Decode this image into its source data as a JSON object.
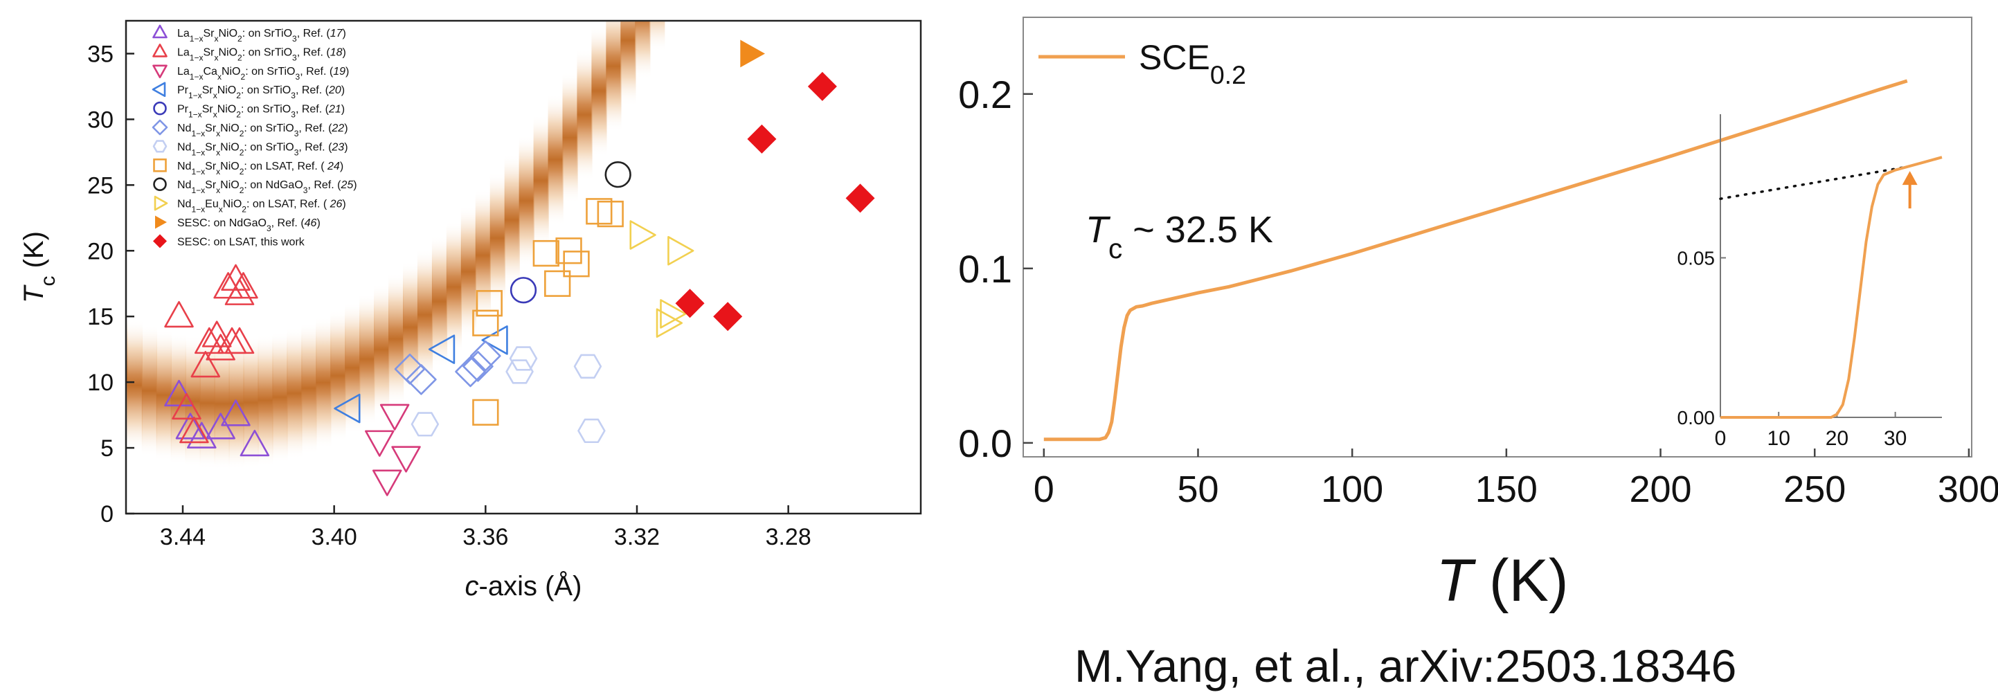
{
  "chart_data": [
    {
      "type": "scatter",
      "title": "",
      "ylabel": {
        "sym": "T",
        "sub": "c",
        "unit": " (K)"
      },
      "xlabel": {
        "sym": "c",
        "rest": "-axis (Å)"
      },
      "xlim": [
        3.455,
        3.245
      ],
      "ylim": [
        0,
        37.5
      ],
      "x_reversed": true,
      "xticks": [
        3.44,
        3.4,
        3.36,
        3.32,
        3.28
      ],
      "xtick_labels": [
        "3.44",
        "3.40",
        "3.36",
        "3.32",
        "3.28"
      ],
      "yticks": [
        0,
        5,
        10,
        15,
        20,
        25,
        30,
        35
      ],
      "ytick_labels": [
        "0",
        "5",
        "10",
        "15",
        "20",
        "25",
        "30",
        "35"
      ],
      "background": "orange gradient band along the trend",
      "legend_position": "top-left",
      "series": [
        {
          "name_parts": [
            [
              "La",
              ""
            ],
            [
              "1−x",
              "sub"
            ],
            [
              "Sr",
              ""
            ],
            [
              "x",
              "sub"
            ],
            [
              "NiO",
              ""
            ],
            [
              "2",
              "sub"
            ],
            [
              ": on SrTiO",
              ""
            ],
            [
              "3",
              "sub"
            ],
            [
              ", Ref. (",
              ""
            ],
            [
              "17",
              "i"
            ],
            [
              ")",
              ""
            ]
          ],
          "marker": "triangle-up",
          "color": "#8c4fd6",
          "fill": "none",
          "points": [
            [
              3.441,
              9
            ],
            [
              3.438,
              6.5
            ],
            [
              3.435,
              5.8
            ],
            [
              3.43,
              6.5
            ],
            [
              3.426,
              7.5
            ],
            [
              3.421,
              5.2
            ]
          ]
        },
        {
          "name_parts": [
            [
              "La",
              ""
            ],
            [
              "1−x",
              "sub"
            ],
            [
              "Sr",
              ""
            ],
            [
              "x",
              "sub"
            ],
            [
              "NiO",
              ""
            ],
            [
              "2",
              "sub"
            ],
            [
              ": on SrTiO",
              ""
            ],
            [
              "3",
              "sub"
            ],
            [
              ", Ref. (",
              ""
            ],
            [
              "18",
              "i"
            ],
            [
              ")",
              ""
            ]
          ],
          "marker": "triangle-up",
          "color": "#e8404a",
          "fill": "none",
          "points": [
            [
              3.441,
              15
            ],
            [
              3.439,
              8
            ],
            [
              3.437,
              6.2
            ],
            [
              3.434,
              11.2
            ],
            [
              3.433,
              13
            ],
            [
              3.431,
              13.5
            ],
            [
              3.43,
              12.5
            ],
            [
              3.427,
              13
            ],
            [
              3.428,
              17.2
            ],
            [
              3.426,
              17.8
            ],
            [
              3.425,
              16.7
            ],
            [
              3.424,
              17.2
            ],
            [
              3.425,
              13
            ]
          ]
        },
        {
          "name_parts": [
            [
              "La",
              ""
            ],
            [
              "1−x",
              "sub"
            ],
            [
              "Ca",
              ""
            ],
            [
              "x",
              "sub"
            ],
            [
              "NiO",
              ""
            ],
            [
              "2",
              "sub"
            ],
            [
              ": on SrTiO",
              ""
            ],
            [
              "3",
              "sub"
            ],
            [
              ", Ref. (",
              ""
            ],
            [
              "19",
              "i"
            ],
            [
              ")",
              ""
            ]
          ],
          "marker": "triangle-down",
          "color": "#d63a7a",
          "fill": "none",
          "points": [
            [
              3.388,
              5.5
            ],
            [
              3.384,
              7.5
            ],
            [
              3.386,
              2.5
            ],
            [
              3.381,
              4.3
            ]
          ]
        },
        {
          "name_parts": [
            [
              "Pr",
              ""
            ],
            [
              "1−x",
              "sub"
            ],
            [
              "Sr",
              ""
            ],
            [
              "x",
              "sub"
            ],
            [
              "NiO",
              ""
            ],
            [
              "2",
              "sub"
            ],
            [
              ": on SrTiO",
              ""
            ],
            [
              "3",
              "sub"
            ],
            [
              ", Ref. (",
              ""
            ],
            [
              "20",
              "i"
            ],
            [
              ")",
              ""
            ]
          ],
          "marker": "triangle-left",
          "color": "#3f7fe0",
          "fill": "none",
          "points": [
            [
              3.396,
              8
            ],
            [
              3.371,
              12.5
            ],
            [
              3.357,
              13.2
            ]
          ]
        },
        {
          "name_parts": [
            [
              "Pr",
              ""
            ],
            [
              "1−x",
              "sub"
            ],
            [
              "Sr",
              ""
            ],
            [
              "x",
              "sub"
            ],
            [
              "NiO",
              ""
            ],
            [
              "2",
              "sub"
            ],
            [
              ": on SrTiO",
              ""
            ],
            [
              "3",
              "sub"
            ],
            [
              ", Ref. (",
              ""
            ],
            [
              "21",
              "i"
            ],
            [
              ")",
              ""
            ]
          ],
          "marker": "circle",
          "color": "#3a3ab8",
          "fill": "none",
          "points": [
            [
              3.35,
              17
            ]
          ]
        },
        {
          "name_parts": [
            [
              "Nd",
              ""
            ],
            [
              "1−x",
              "sub"
            ],
            [
              "Sr",
              ""
            ],
            [
              "x",
              "sub"
            ],
            [
              "NiO",
              ""
            ],
            [
              "2",
              "sub"
            ],
            [
              ": on SrTiO",
              ""
            ],
            [
              "3",
              "sub"
            ],
            [
              ", Ref. (",
              ""
            ],
            [
              "22",
              "i"
            ],
            [
              ")",
              ""
            ]
          ],
          "marker": "diamond",
          "color": "#7f96e6",
          "fill": "none",
          "points": [
            [
              3.38,
              11
            ],
            [
              3.377,
              10.2
            ],
            [
              3.364,
              10.8
            ],
            [
              3.362,
              11.2
            ],
            [
              3.36,
              12
            ]
          ]
        },
        {
          "name_parts": [
            [
              "Nd",
              ""
            ],
            [
              "1−x",
              "sub"
            ],
            [
              "Sr",
              ""
            ],
            [
              "x",
              "sub"
            ],
            [
              "NiO",
              ""
            ],
            [
              "2",
              "sub"
            ],
            [
              ": on SrTiO",
              ""
            ],
            [
              "3",
              "sub"
            ],
            [
              ", Ref. (",
              ""
            ],
            [
              "23",
              "i"
            ],
            [
              ")",
              ""
            ]
          ],
          "marker": "hexagon",
          "color": "#c3cff2",
          "fill": "none",
          "points": [
            [
              3.376,
              6.8
            ],
            [
              3.351,
              10.8
            ],
            [
              3.35,
              11.8
            ],
            [
              3.333,
              11.2
            ],
            [
              3.332,
              6.3
            ]
          ]
        },
        {
          "name_parts": [
            [
              "Nd",
              ""
            ],
            [
              "1−x",
              "sub"
            ],
            [
              "Sr",
              ""
            ],
            [
              "x",
              "sub"
            ],
            [
              "NiO",
              ""
            ],
            [
              "2",
              "sub"
            ],
            [
              ": on LSAT, Ref. ( ",
              ""
            ],
            [
              "24",
              "i"
            ],
            [
              ")",
              ""
            ]
          ],
          "marker": "square",
          "color": "#eea13a",
          "fill": "none",
          "points": [
            [
              3.36,
              7.7
            ],
            [
              3.36,
              14.5
            ],
            [
              3.359,
              16
            ],
            [
              3.344,
              19.8
            ],
            [
              3.341,
              17.5
            ],
            [
              3.338,
              20
            ],
            [
              3.336,
              19
            ],
            [
              3.33,
              23
            ],
            [
              3.327,
              22.8
            ]
          ]
        },
        {
          "name_parts": [
            [
              "Nd",
              ""
            ],
            [
              "1−x",
              "sub"
            ],
            [
              "Sr",
              ""
            ],
            [
              "x",
              "sub"
            ],
            [
              "NiO",
              ""
            ],
            [
              "2",
              "sub"
            ],
            [
              ": on NdGaO",
              ""
            ],
            [
              "3",
              "sub"
            ],
            [
              ", Ref. (",
              ""
            ],
            [
              "25",
              "i"
            ],
            [
              ")",
              ""
            ]
          ],
          "marker": "circle",
          "color": "#222222",
          "fill": "none",
          "points": [
            [
              3.325,
              25.8
            ]
          ]
        },
        {
          "name_parts": [
            [
              "Nd",
              ""
            ],
            [
              "1−x",
              "sub"
            ],
            [
              "Eu",
              ""
            ],
            [
              "x",
              "sub"
            ],
            [
              "NiO",
              ""
            ],
            [
              "2",
              "sub"
            ],
            [
              ": on LSAT, Ref. ( ",
              ""
            ],
            [
              "26",
              "i"
            ],
            [
              ")",
              ""
            ]
          ],
          "marker": "triangle-right",
          "color": "#f2d050",
          "fill": "none",
          "points": [
            [
              3.319,
              21.2
            ],
            [
              3.309,
              20
            ],
            [
              3.312,
              14.5
            ],
            [
              3.311,
              15.2
            ]
          ]
        },
        {
          "name_parts": [
            [
              "SESC: on NdGaO",
              ""
            ],
            [
              "3",
              "sub"
            ],
            [
              ", Ref. (",
              ""
            ],
            [
              "46",
              "i"
            ],
            [
              ")",
              ""
            ]
          ],
          "marker": "triangle-right",
          "color": "#f08a1c",
          "fill": "solid",
          "points": [
            [
              3.29,
              35
            ]
          ]
        },
        {
          "name_parts": [
            [
              "SESC: on LSAT, this work",
              ""
            ]
          ],
          "marker": "diamond",
          "color": "#e8141a",
          "fill": "solid",
          "points": [
            [
              3.306,
              16
            ],
            [
              3.296,
              15
            ],
            [
              3.287,
              28.5
            ],
            [
              3.271,
              32.5
            ],
            [
              3.261,
              24
            ]
          ]
        }
      ]
    },
    {
      "type": "line",
      "title": "",
      "legend": {
        "main": "SCE",
        "sub": "0.2"
      },
      "xlabel": {
        "sym": "T",
        "unit": " (K)"
      },
      "ylabel": "",
      "xlim": [
        -4,
        298
      ],
      "ylim": [
        -0.006,
        0.238
      ],
      "xticks": [
        0,
        50,
        100,
        150,
        200,
        250,
        300
      ],
      "xtick_labels": [
        "0",
        "50",
        "100",
        "150",
        "200",
        "250",
        "300"
      ],
      "yticks": [
        0.0,
        0.1,
        0.2
      ],
      "ytick_labels": [
        "0.0",
        "0.1",
        "0.2"
      ],
      "annotation": {
        "sym": "T",
        "sub": "c",
        "rest": " ~ 32.5 K"
      },
      "color": "#f0a050",
      "series": [
        {
          "values": [
            [
              0,
              0.002
            ],
            [
              5,
              0.002
            ],
            [
              10,
              0.002
            ],
            [
              15,
              0.002
            ],
            [
              18,
              0.002
            ],
            [
              20,
              0.003
            ],
            [
              21,
              0.006
            ],
            [
              22,
              0.012
            ],
            [
              23,
              0.025
            ],
            [
              24,
              0.04
            ],
            [
              25,
              0.055
            ],
            [
              26,
              0.066
            ],
            [
              27,
              0.073
            ],
            [
              28,
              0.076
            ],
            [
              30,
              0.078
            ],
            [
              32,
              0.0785
            ],
            [
              35,
              0.08
            ],
            [
              40,
              0.082
            ],
            [
              45,
              0.084
            ],
            [
              50,
              0.086
            ],
            [
              60,
              0.0895
            ],
            [
              70,
              0.094
            ],
            [
              80,
              0.0985
            ],
            [
              90,
              0.1035
            ],
            [
              100,
              0.1085
            ],
            [
              125,
              0.122
            ],
            [
              150,
              0.1355
            ],
            [
              175,
              0.149
            ],
            [
              200,
              0.1625
            ],
            [
              225,
              0.1765
            ],
            [
              250,
              0.1905
            ],
            [
              270,
              0.202
            ],
            [
              280,
              0.2075
            ]
          ]
        }
      ],
      "inset": {
        "xlim": [
          0,
          38
        ],
        "ylim": [
          0,
          0.095
        ],
        "xticks": [
          0,
          10,
          20,
          30
        ],
        "xtick_labels": [
          "0",
          "10",
          "20",
          "30"
        ],
        "yticks": [
          0.0,
          0.05
        ],
        "ytick_labels": [
          "0.00",
          "0.05"
        ],
        "curve": [
          [
            0,
            0.0
          ],
          [
            10,
            0.0
          ],
          [
            19,
            0.0
          ],
          [
            20,
            0.001
          ],
          [
            21,
            0.004
          ],
          [
            22,
            0.012
          ],
          [
            23,
            0.025
          ],
          [
            24,
            0.04
          ],
          [
            25,
            0.055
          ],
          [
            26,
            0.066
          ],
          [
            27,
            0.073
          ],
          [
            28,
            0.076
          ],
          [
            30,
            0.0775
          ],
          [
            32,
            0.0785
          ],
          [
            35,
            0.08
          ],
          [
            38,
            0.0815
          ]
        ],
        "extrapolation": [
          [
            0,
            0.0685
          ],
          [
            32,
            0.0785
          ]
        ],
        "arrow_at": [
          32.5,
          0.0785
        ]
      }
    }
  ],
  "citation": "M.Yang, et al., arXiv:2503.18346"
}
